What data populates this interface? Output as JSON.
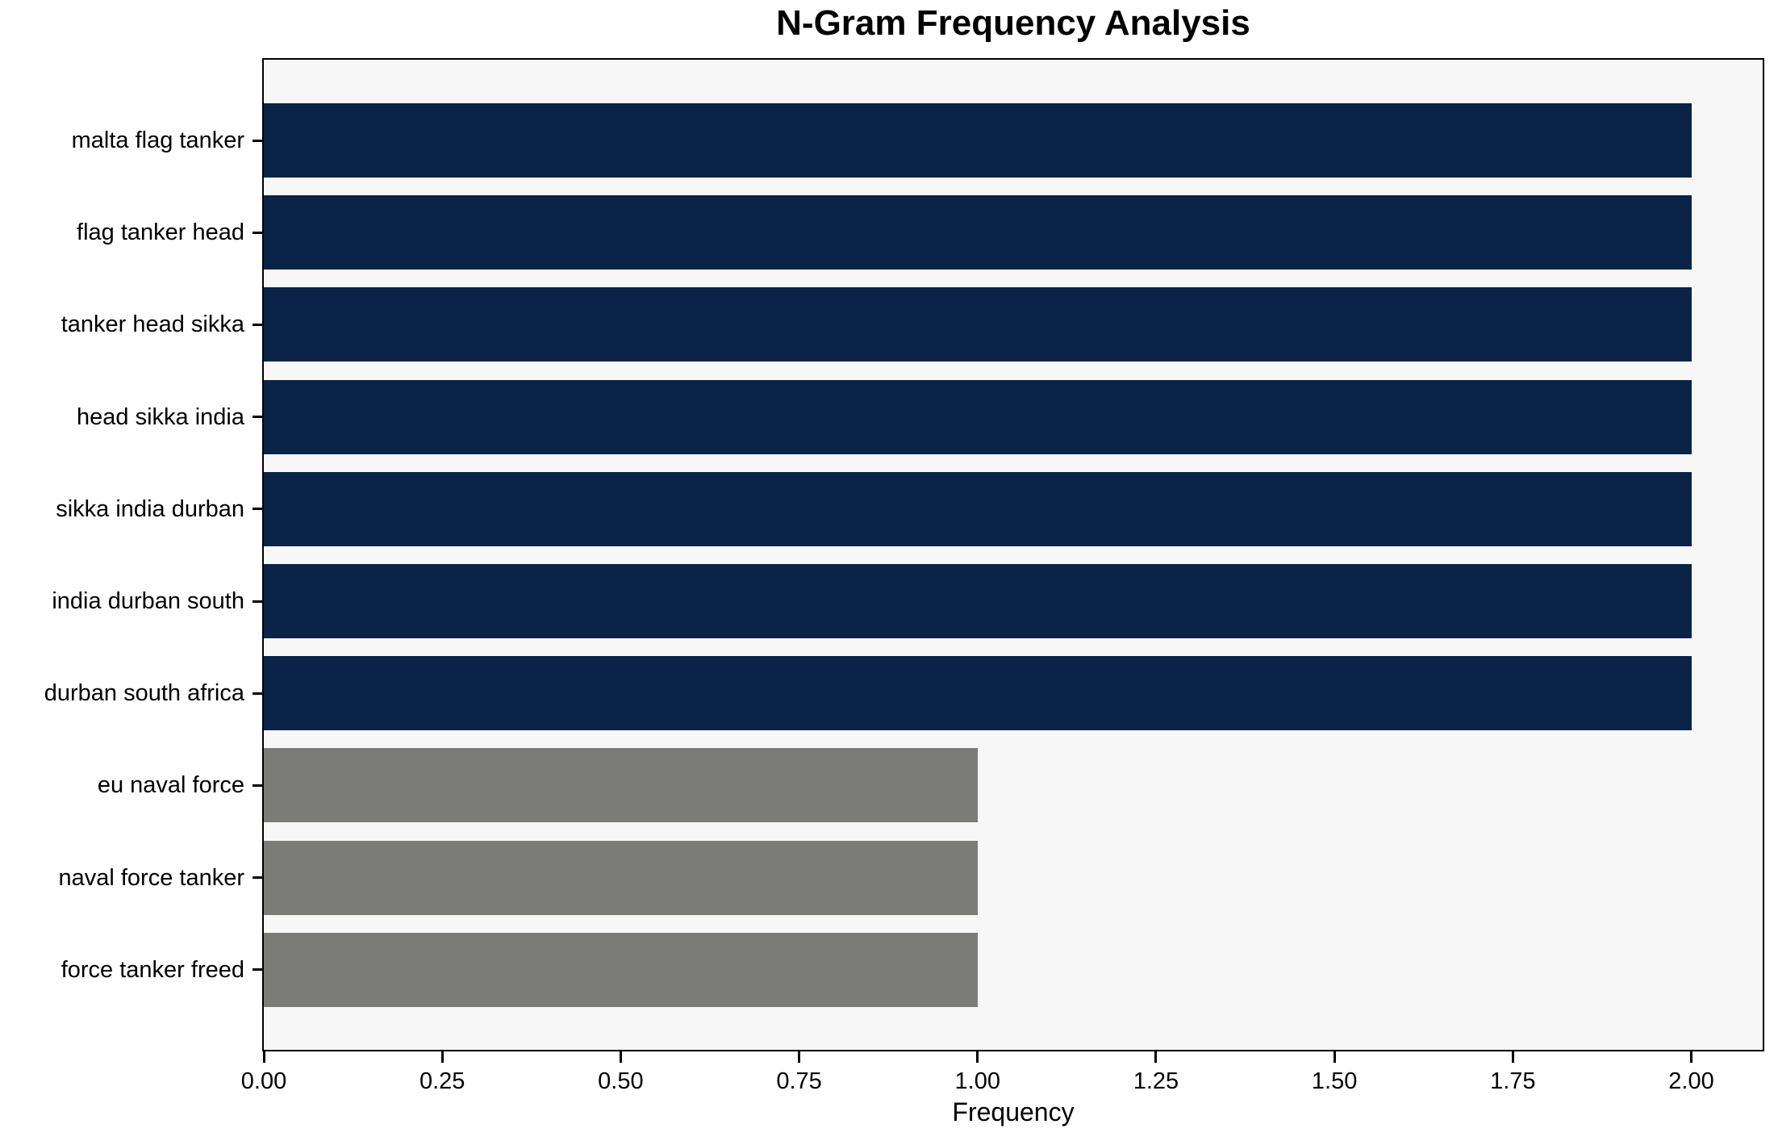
{
  "title": "N-Gram Frequency Analysis",
  "chart_data": {
    "type": "bar",
    "orientation": "horizontal",
    "title": "N-Gram Frequency Analysis",
    "xlabel": "Frequency",
    "ylabel": "",
    "categories": [
      "malta flag tanker",
      "flag tanker head",
      "tanker head sikka",
      "head sikka india",
      "sikka india durban",
      "india durban south",
      "durban south africa",
      "eu naval force",
      "naval force tanker",
      "force tanker freed"
    ],
    "values": [
      2,
      2,
      2,
      2,
      2,
      2,
      2,
      1,
      1,
      1
    ],
    "xlim": [
      0,
      2.1
    ],
    "xticks": [
      "0.00",
      "0.25",
      "0.50",
      "0.75",
      "1.00",
      "1.25",
      "1.50",
      "1.75",
      "2.00"
    ],
    "grid": false,
    "legend": false,
    "bar_colors": [
      "#0b2347",
      "#0b2347",
      "#0b2347",
      "#0b2347",
      "#0b2347",
      "#0b2347",
      "#0b2347",
      "#7b7b78",
      "#7b7b78",
      "#7b7b78"
    ],
    "colors": {
      "bar_high": "#0b2347",
      "bar_low": "#7b7b78",
      "plot_background": "#f7f7f7",
      "figure_background": "#ffffff",
      "spine": "#000000",
      "text": "#000000"
    }
  }
}
